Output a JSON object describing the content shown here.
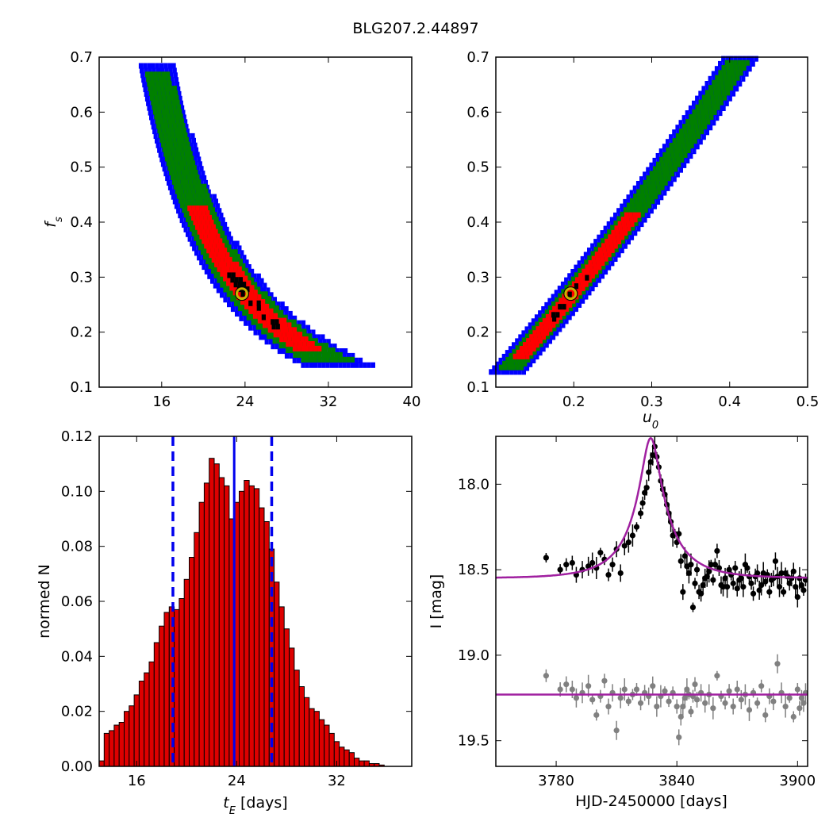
{
  "figure": {
    "title": "BLG207.2.44897",
    "colors": {
      "chi_blue": "#0000ff",
      "chi_green": "#008000",
      "chi_red": "#ff0000",
      "chi_black": "#000000",
      "best_fit_marker": "#c8b400",
      "hist_bar": "#dd0000",
      "hist_lines": "#0000ee",
      "model_line": "#a020a0",
      "data_black": "#000000",
      "data_gray": "#808080"
    }
  },
  "chart_data": [
    {
      "id": "tE-fs",
      "type": "heatmap",
      "xlabel": "",
      "ylabel": "f_s",
      "xlim": [
        10,
        40
      ],
      "ylim": [
        0.1,
        0.7
      ],
      "xticks": [
        16,
        24,
        32,
        40
      ],
      "yticks": [
        0.1,
        0.2,
        0.3,
        0.4,
        0.5,
        0.6,
        0.7
      ],
      "relation": "fs = 0.27 * (24 / tE)^2.1",
      "fs_range": [
        0.14,
        0.68
      ],
      "best_fit": {
        "x": 23.7,
        "y": 0.27
      },
      "levels": [
        "black",
        "red",
        "green",
        "blue"
      ]
    },
    {
      "id": "u0-fs",
      "type": "heatmap",
      "xlabel": "u_0",
      "ylabel": "",
      "xlim": [
        0.1,
        0.5
      ],
      "ylim": [
        0.1,
        0.7
      ],
      "xticks": [
        0.2,
        0.3,
        0.4,
        0.5
      ],
      "yticks": [
        0.1,
        0.2,
        0.3,
        0.4,
        0.5,
        0.6,
        0.7
      ],
      "relation": "fs ≈ 0.27 + 1.79*(u0-0.196) + 0.9*(u0-0.196)^2",
      "u0_range": [
        0.113,
        0.415
      ],
      "best_fit": {
        "x": 0.196,
        "y": 0.27
      },
      "levels": [
        "black",
        "red",
        "green",
        "blue"
      ]
    },
    {
      "id": "tE-hist",
      "type": "bar",
      "xlabel": "t_E [days]",
      "ylabel": "normed N",
      "xlim": [
        13,
        38
      ],
      "ylim": [
        0,
        0.12
      ],
      "xticks": [
        16,
        24,
        32
      ],
      "yticks": [
        0.0,
        0.02,
        0.04,
        0.06,
        0.08,
        0.1,
        0.12
      ],
      "bin_start": 13.0,
      "bin_width": 0.4,
      "values": [
        0.002,
        0.012,
        0.013,
        0.015,
        0.016,
        0.02,
        0.022,
        0.026,
        0.031,
        0.034,
        0.038,
        0.045,
        0.051,
        0.056,
        0.058,
        0.057,
        0.061,
        0.068,
        0.076,
        0.085,
        0.096,
        0.103,
        0.112,
        0.11,
        0.105,
        0.102,
        0.09,
        0.096,
        0.1,
        0.104,
        0.102,
        0.101,
        0.094,
        0.089,
        0.079,
        0.067,
        0.058,
        0.05,
        0.043,
        0.035,
        0.029,
        0.025,
        0.021,
        0.02,
        0.017,
        0.015,
        0.012,
        0.009,
        0.007,
        0.006,
        0.005,
        0.003,
        0.002,
        0.002,
        0.001,
        0.001,
        0.0005
      ],
      "median": 23.8,
      "lower": 18.9,
      "upper": 26.8
    },
    {
      "id": "lightcurve",
      "type": "scatter",
      "xlabel": "HJD-2450000 [days]",
      "ylabel": "I [mag]",
      "xlim": [
        3750,
        3905
      ],
      "ylim": [
        19.65,
        17.72
      ],
      "xticks": [
        3780,
        3840,
        3900
      ],
      "yticks": [
        18.0,
        18.5,
        19.0,
        19.5
      ],
      "yticklabels": [
        "18.0",
        "18.5",
        "19.0",
        "19.5"
      ],
      "model": {
        "t0": 3827,
        "tE": 23.8,
        "u0": 0.196,
        "fs": 0.27,
        "baseline": 18.55
      },
      "offset_series": {
        "baseline": 19.23,
        "note_color": "gray"
      },
      "series": [
        {
          "color": "black",
          "x": [
            3775,
            3782,
            3785,
            3788,
            3790,
            3793,
            3796,
            3798,
            3800,
            3802,
            3804,
            3806,
            3808,
            3810,
            3812,
            3814,
            3816,
            3818,
            3820,
            3822,
            3823,
            3824,
            3825,
            3826,
            3827,
            3828,
            3829,
            3830,
            3831,
            3832,
            3833,
            3834,
            3835,
            3836,
            3837,
            3838,
            3839,
            3840,
            3841,
            3842,
            3843,
            3844,
            3845,
            3846,
            3847,
            3848,
            3849,
            3850,
            3851,
            3852,
            3853,
            3854,
            3855,
            3856,
            3857,
            3858,
            3859,
            3860,
            3861,
            3862,
            3863,
            3864,
            3865,
            3866,
            3867,
            3868,
            3869,
            3870,
            3871,
            3872,
            3873,
            3874,
            3875,
            3876,
            3877,
            3878,
            3879,
            3880,
            3881,
            3882,
            3883,
            3884,
            3885,
            3886,
            3887,
            3888,
            3889,
            3890,
            3891,
            3892,
            3893,
            3894,
            3895,
            3896,
            3897,
            3898,
            3899,
            3900,
            3901,
            3902,
            3903,
            3904
          ],
          "y": [
            18.43,
            18.5,
            18.47,
            18.46,
            18.53,
            18.5,
            18.48,
            18.46,
            18.49,
            18.4,
            18.44,
            18.53,
            18.47,
            18.38,
            18.52,
            18.36,
            18.34,
            18.3,
            18.25,
            18.17,
            18.11,
            18.05,
            18.02,
            17.93,
            17.87,
            17.83,
            17.78,
            17.84,
            17.9,
            17.98,
            18.03,
            18.06,
            18.12,
            18.17,
            18.22,
            18.3,
            18.29,
            18.34,
            18.29,
            18.45,
            18.63,
            18.42,
            18.48,
            18.52,
            18.47,
            18.72,
            18.58,
            18.5,
            18.63,
            18.64,
            18.59,
            18.55,
            18.54,
            18.51,
            18.47,
            18.56,
            18.47,
            18.39,
            18.49,
            18.59,
            18.6,
            18.55,
            18.6,
            18.5,
            18.53,
            18.58,
            18.49,
            18.61,
            18.56,
            18.55,
            18.6,
            18.47,
            18.49,
            18.54,
            18.58,
            18.64,
            18.54,
            18.52,
            18.62,
            18.59,
            18.52,
            18.57,
            18.53,
            18.63,
            18.56,
            18.55,
            18.45,
            18.54,
            18.6,
            18.52,
            18.63,
            18.52,
            18.54,
            18.58,
            18.55,
            18.51,
            18.6,
            18.66,
            18.55,
            18.59,
            18.62,
            18.56
          ]
        },
        {
          "color": "gray",
          "x": [
            3775,
            3782,
            3785,
            3788,
            3790,
            3793,
            3796,
            3798,
            3800,
            3802,
            3804,
            3806,
            3808,
            3810,
            3812,
            3814,
            3816,
            3818,
            3820,
            3822,
            3824,
            3826,
            3828,
            3830,
            3832,
            3834,
            3836,
            3838,
            3840,
            3841,
            3842,
            3843,
            3844,
            3845,
            3846,
            3847,
            3848,
            3849,
            3850,
            3852,
            3854,
            3856,
            3858,
            3860,
            3862,
            3864,
            3866,
            3868,
            3870,
            3872,
            3874,
            3876,
            3878,
            3880,
            3882,
            3884,
            3886,
            3888,
            3890,
            3892,
            3894,
            3896,
            3898,
            3900,
            3901,
            3902,
            3903,
            3904
          ],
          "y": [
            19.12,
            19.2,
            19.17,
            19.2,
            19.25,
            19.22,
            19.18,
            19.26,
            19.35,
            19.24,
            19.15,
            19.3,
            19.22,
            19.44,
            19.25,
            19.2,
            19.27,
            19.23,
            19.2,
            19.28,
            19.22,
            19.24,
            19.18,
            19.3,
            19.24,
            19.21,
            19.27,
            19.22,
            19.3,
            19.48,
            19.36,
            19.3,
            19.25,
            19.2,
            19.23,
            19.33,
            19.24,
            19.17,
            19.26,
            19.22,
            19.28,
            19.23,
            19.31,
            19.12,
            19.24,
            19.28,
            19.21,
            19.3,
            19.2,
            19.26,
            19.23,
            19.32,
            19.22,
            19.28,
            19.18,
            19.35,
            19.24,
            19.27,
            19.05,
            19.22,
            19.3,
            19.25,
            19.36,
            19.2,
            19.31,
            19.25,
            19.28,
            19.22
          ]
        }
      ]
    }
  ]
}
